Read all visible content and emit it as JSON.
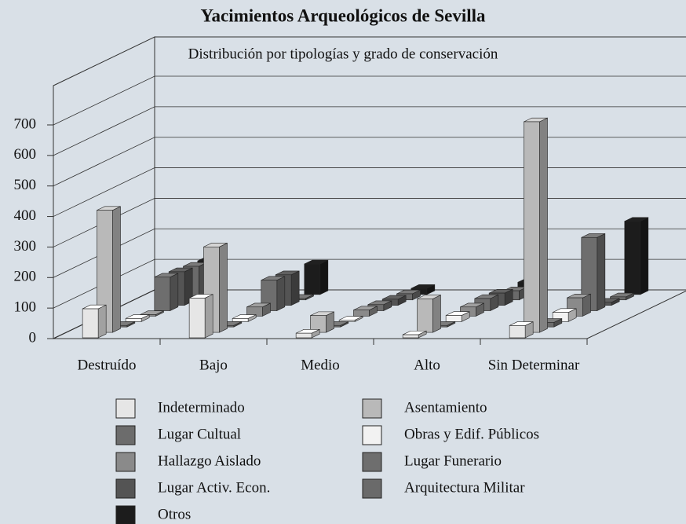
{
  "chart_data": {
    "type": "bar3d",
    "title": "Yacimientos Arqueológicos de Sevilla",
    "subtitle": "Distribución por tipologías y grado de conservación",
    "categories": [
      "Destruído",
      "Bajo",
      "Medio",
      "Alto",
      "Sin Determinar"
    ],
    "ylim": [
      0,
      700
    ],
    "yticks": [
      0,
      100,
      200,
      300,
      400,
      500,
      600,
      700
    ],
    "grid": true,
    "series": [
      {
        "name": "Indeterminado",
        "color": "#e6e6e6",
        "values": [
          95,
          130,
          15,
          10,
          40
        ]
      },
      {
        "name": "Asentamiento",
        "color": "#b9b9b9",
        "values": [
          400,
          280,
          55,
          110,
          690
        ]
      },
      {
        "name": "Lugar Cultual",
        "color": "#6c6c6c",
        "values": [
          5,
          5,
          5,
          5,
          15
        ]
      },
      {
        "name": "Obras y Edif. Públicos",
        "color": "#f2f2f2",
        "values": [
          10,
          10,
          5,
          20,
          30
        ]
      },
      {
        "name": "Hallazgo Aislado",
        "color": "#8a8a8a",
        "values": [
          5,
          30,
          20,
          30,
          60
        ]
      },
      {
        "name": "Lugar Funerario",
        "color": "#6e6e6e",
        "values": [
          110,
          100,
          20,
          40,
          240
        ]
      },
      {
        "name": "Lugar Activ. Econ.",
        "color": "#545454",
        "values": [
          110,
          100,
          20,
          40,
          10
        ]
      },
      {
        "name": "Arquitectura Militar",
        "color": "#6a6a6a",
        "values": [
          110,
          5,
          20,
          30,
          10
        ]
      },
      {
        "name": "Otros",
        "color": "#1c1c1c",
        "values": [
          110,
          100,
          20,
          40,
          240
        ]
      }
    ]
  }
}
